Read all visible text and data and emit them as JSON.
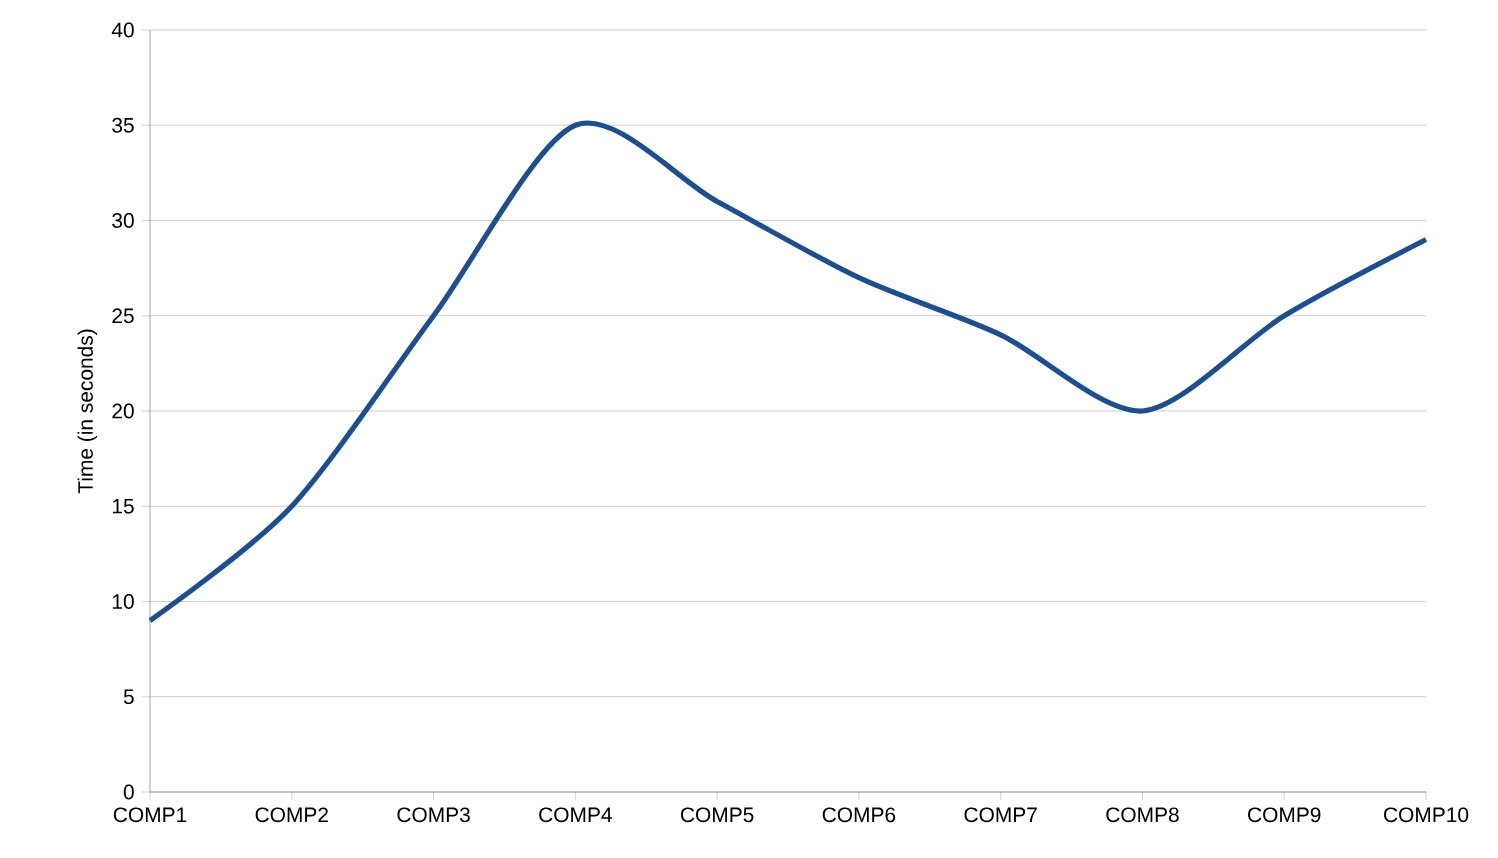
{
  "chart_data": {
    "type": "line",
    "ylabel": "Time (in seconds)",
    "categories": [
      "COMP1",
      "COMP2",
      "COMP3",
      "COMP4",
      "COMP5",
      "COMP6",
      "COMP7",
      "COMP8",
      "COMP9",
      "COMP10"
    ],
    "series": [
      {
        "color": "#1f4e8c",
        "values": [
          9,
          15,
          25,
          35,
          31,
          27,
          24,
          20,
          25,
          29
        ]
      }
    ],
    "ylim": [
      0,
      40
    ],
    "yticks": [
      0,
      5,
      10,
      15,
      20,
      25,
      30,
      35,
      40
    ],
    "grid": "y",
    "marker": "none",
    "line_style": "solid"
  }
}
